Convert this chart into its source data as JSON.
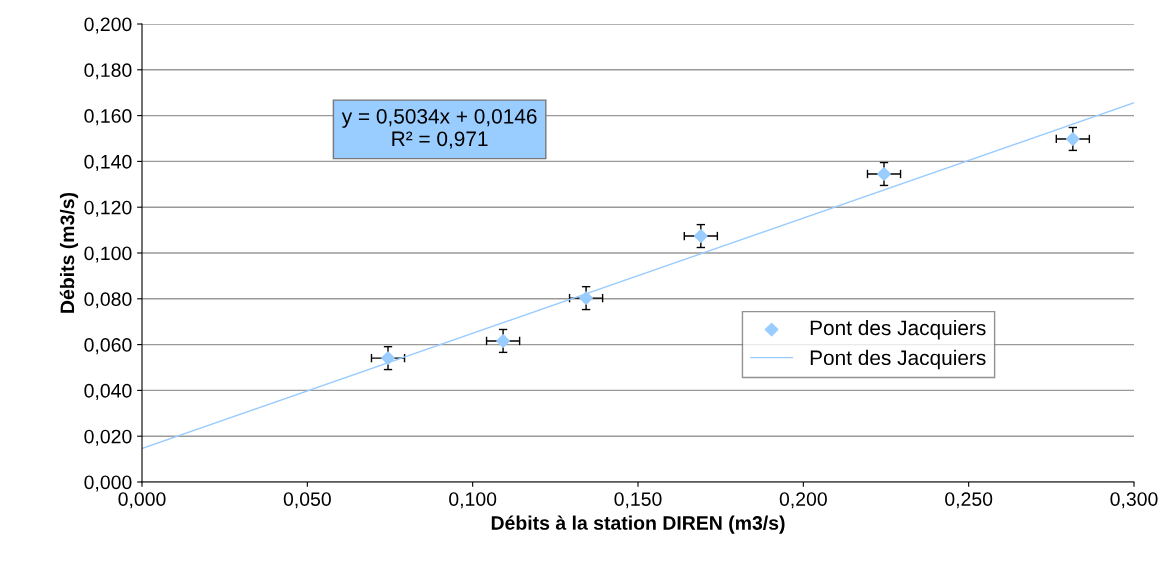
{
  "chart_data": {
    "type": "scatter",
    "xlabel": "Débits à la station DIREN (m3/s)",
    "ylabel": "Débits (m3/s)",
    "annotations": [
      "y = 0,5034x + 0,0146\nR² = 0,971"
    ],
    "series": [
      {
        "name": "Pont des Jacquiers",
        "color": "#99ccff",
        "marker": "diamond",
        "x": [
          0.0744,
          0.1092,
          0.1343,
          0.169,
          0.2244,
          0.2815
        ],
        "values": [
          0.0541,
          0.0616,
          0.0803,
          0.1074,
          0.1345,
          0.1498
        ],
        "errors": [
          0.005,
          0.005,
          0.005,
          0.005,
          0.005,
          0.005
        ],
        "xerrors": [
          0.005,
          0.005,
          0.005,
          0.005,
          0.005,
          0.005
        ]
      },
      {
        "name": "Pont des Jacquiers",
        "type": "line",
        "color": "#99ccff",
        "marker": "none",
        "x": [
          0,
          0.3
        ],
        "values": [
          0.0146,
          0.1656
        ]
      }
    ],
    "xlim": [
      0,
      0.3
    ],
    "ylim": [
      0,
      0.2
    ],
    "xticks": [
      {
        "value": 0,
        "label": "0,000"
      },
      {
        "value": 0.05,
        "label": "0,050"
      },
      {
        "value": 0.1,
        "label": "0,100"
      },
      {
        "value": 0.15,
        "label": "0,150"
      },
      {
        "value": 0.2,
        "label": "0,200"
      },
      {
        "value": 0.25,
        "label": "0,250"
      },
      {
        "value": 0.3,
        "label": "0,300"
      }
    ],
    "yticks": [
      {
        "value": 0,
        "label": "0,000"
      },
      {
        "value": 0.02,
        "label": "0,020"
      },
      {
        "value": 0.04,
        "label": "0,040"
      },
      {
        "value": 0.06,
        "label": "0,060"
      },
      {
        "value": 0.08,
        "label": "0,080"
      },
      {
        "value": 0.1,
        "label": "0,100"
      },
      {
        "value": 0.12,
        "label": "0,120"
      },
      {
        "value": 0.14,
        "label": "0,140"
      },
      {
        "value": 0.16,
        "label": "0,160"
      },
      {
        "value": 0.18,
        "label": "0,180"
      },
      {
        "value": 0.2,
        "label": "0,200"
      }
    ],
    "grid": "y",
    "legend": "right"
  }
}
